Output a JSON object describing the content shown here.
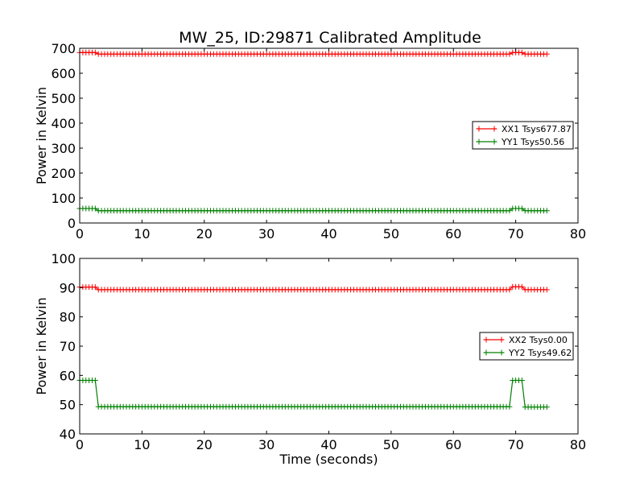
{
  "figure": {
    "title": "MW_25, ID:29871 Calibrated Amplitude"
  },
  "chart_data": [
    {
      "type": "line",
      "title": "MW_25, ID:29871 Calibrated Amplitude",
      "xlabel": "",
      "ylabel": "Power in Kelvin",
      "xlim": [
        0,
        80
      ],
      "ylim": [
        0,
        700
      ],
      "xticks": [
        "0",
        "10",
        "20",
        "30",
        "40",
        "50",
        "60",
        "70",
        "80"
      ],
      "yticks": [
        "0",
        "100",
        "200",
        "300",
        "400",
        "500",
        "600",
        "700"
      ],
      "grid": false,
      "legend": "center-right",
      "marker": "+",
      "sample_interval": 0.5,
      "series": [
        {
          "name": "XX1 Tsys677.87",
          "color": "#ff0000",
          "segments": [
            {
              "x0": 0,
              "x1": 2.5,
              "y": 683
            },
            {
              "x0": 3,
              "x1": 69,
              "y": 677
            },
            {
              "x0": 69.5,
              "x1": 71,
              "y": 683
            },
            {
              "x0": 71.5,
              "x1": 75,
              "y": 677
            }
          ]
        },
        {
          "name": "YY1 Tsys50.56",
          "color": "#008000",
          "segments": [
            {
              "x0": 0,
              "x1": 2.5,
              "y": 58
            },
            {
              "x0": 3,
              "x1": 69,
              "y": 49
            },
            {
              "x0": 69.5,
              "x1": 71,
              "y": 58
            },
            {
              "x0": 71.5,
              "x1": 75,
              "y": 49
            }
          ]
        }
      ]
    },
    {
      "type": "line",
      "title": "",
      "xlabel": "Time (seconds)",
      "ylabel": "Power in Kelvin",
      "xlim": [
        0,
        80
      ],
      "ylim": [
        40,
        100
      ],
      "xticks": [
        "0",
        "10",
        "20",
        "30",
        "40",
        "50",
        "60",
        "70",
        "80"
      ],
      "yticks": [
        "40",
        "50",
        "60",
        "70",
        "80",
        "90",
        "100"
      ],
      "grid": false,
      "legend": "center-right",
      "marker": "+",
      "sample_interval": 0.5,
      "series": [
        {
          "name": "XX2 Tsys0.00",
          "color": "#ff0000",
          "segments": [
            {
              "x0": 0,
              "x1": 2.5,
              "y": 90.2
            },
            {
              "x0": 3,
              "x1": 69,
              "y": 89.3
            },
            {
              "x0": 69.5,
              "x1": 71,
              "y": 90.3
            },
            {
              "x0": 71.5,
              "x1": 75,
              "y": 89.3
            }
          ]
        },
        {
          "name": "YY2 Tsys49.62",
          "color": "#008000",
          "segments": [
            {
              "x0": 0,
              "x1": 2.5,
              "y": 58.3
            },
            {
              "x0": 3,
              "x1": 69,
              "y": 49.3
            },
            {
              "x0": 69.5,
              "x1": 71,
              "y": 58.3
            },
            {
              "x0": 71.5,
              "x1": 75,
              "y": 49.2
            }
          ]
        }
      ]
    }
  ]
}
